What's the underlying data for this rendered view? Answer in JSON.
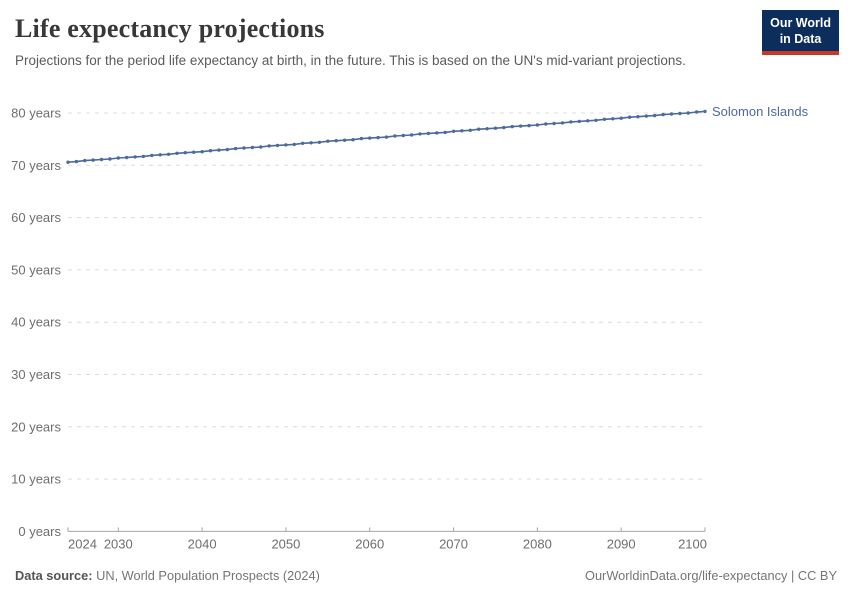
{
  "header": {
    "title": "Life expectancy projections",
    "subtitle": "Projections for the period life expectancy at birth, in the future. This is based on the UN's mid-variant projections.",
    "logo": {
      "line1": "Our World",
      "line2": "in Data"
    }
  },
  "colors": {
    "series_blue": "#4c6a9c",
    "logo_navy": "#0d2e5c",
    "logo_red": "#c63927",
    "grid": "#dcdcdc",
    "axis_line": "#a6a6a6",
    "tick_text": "#6e6e6e"
  },
  "chart_data": {
    "type": "line",
    "title": "Life expectancy projections",
    "xlabel": "",
    "ylabel": "",
    "xlim": [
      2024,
      2100
    ],
    "ylim": [
      0,
      80
    ],
    "x_ticks": [
      2024,
      2030,
      2040,
      2050,
      2060,
      2070,
      2080,
      2090,
      2100
    ],
    "y_ticks": [
      0,
      10,
      20,
      30,
      40,
      50,
      60,
      70,
      80
    ],
    "y_tick_suffix": " years",
    "grid": "horizontal-dashed",
    "legend_position": "right-of-line",
    "series": [
      {
        "name": "Solomon Islands",
        "color": "#4c6a9c",
        "years": [
          2024,
          2025,
          2026,
          2027,
          2028,
          2029,
          2030,
          2031,
          2032,
          2033,
          2034,
          2035,
          2036,
          2037,
          2038,
          2039,
          2040,
          2041,
          2042,
          2043,
          2044,
          2045,
          2046,
          2047,
          2048,
          2049,
          2050,
          2051,
          2052,
          2053,
          2054,
          2055,
          2056,
          2057,
          2058,
          2059,
          2060,
          2061,
          2062,
          2063,
          2064,
          2065,
          2066,
          2067,
          2068,
          2069,
          2070,
          2071,
          2072,
          2073,
          2074,
          2075,
          2076,
          2077,
          2078,
          2079,
          2080,
          2081,
          2082,
          2083,
          2084,
          2085,
          2086,
          2087,
          2088,
          2089,
          2090,
          2091,
          2092,
          2093,
          2094,
          2095,
          2096,
          2097,
          2098,
          2099,
          2100
        ],
        "values": [
          70.6,
          70.7,
          70.9,
          71.0,
          71.1,
          71.2,
          71.4,
          71.5,
          71.6,
          71.7,
          71.9,
          72.0,
          72.1,
          72.3,
          72.4,
          72.5,
          72.6,
          72.8,
          72.9,
          73.0,
          73.2,
          73.3,
          73.4,
          73.5,
          73.7,
          73.8,
          73.9,
          74.0,
          74.2,
          74.3,
          74.4,
          74.6,
          74.7,
          74.8,
          74.9,
          75.1,
          75.2,
          75.3,
          75.4,
          75.6,
          75.7,
          75.8,
          76.0,
          76.1,
          76.2,
          76.3,
          76.5,
          76.6,
          76.7,
          76.9,
          77.0,
          77.1,
          77.2,
          77.4,
          77.5,
          77.6,
          77.7,
          77.9,
          78.0,
          78.1,
          78.3,
          78.4,
          78.5,
          78.6,
          78.8,
          78.9,
          79.0,
          79.2,
          79.3,
          79.4,
          79.5,
          79.7,
          79.8,
          79.9,
          80.0,
          80.2,
          80.3
        ]
      }
    ]
  },
  "footer": {
    "source_label": "Data source:",
    "source_text": " UN, World Population Prospects (2024)",
    "right_text": "OurWorldinData.org/life-expectancy | CC BY"
  }
}
